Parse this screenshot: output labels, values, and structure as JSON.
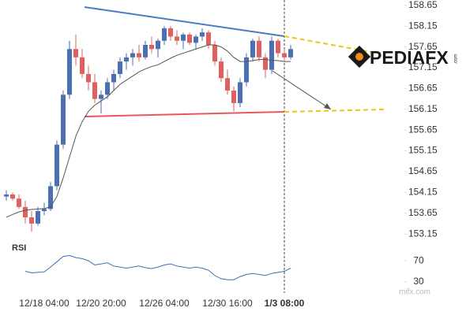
{
  "chart_data": {
    "type": "candlestick",
    "categories": [
      null,
      null,
      null,
      null,
      null,
      null,
      "12/18 04:00",
      null,
      null,
      null,
      null,
      null,
      null,
      null,
      null,
      "12/20 20:00",
      null,
      null,
      null,
      null,
      null,
      null,
      null,
      null,
      null,
      "12/26 04:00",
      null,
      null,
      null,
      null,
      null,
      null,
      null,
      null,
      null,
      "12/30 16:00",
      null,
      null,
      null,
      null,
      null,
      null,
      null,
      null,
      "1/3 08:00",
      null
    ],
    "open": [
      154.05,
      154.1,
      154.0,
      153.8,
      153.55,
      153.4,
      153.7,
      153.75,
      154.3,
      155.3,
      156.5,
      157.6,
      157.4,
      157.0,
      156.8,
      156.4,
      156.5,
      156.8,
      157.0,
      157.3,
      157.4,
      157.5,
      157.4,
      157.7,
      157.6,
      157.8,
      158.1,
      157.9,
      157.8,
      157.95,
      157.75,
      157.9,
      158.0,
      157.7,
      157.3,
      156.9,
      156.6,
      156.3,
      156.8,
      157.4,
      157.8,
      157.4,
      157.1,
      157.8,
      157.5,
      157.4
    ],
    "high": [
      154.2,
      154.15,
      154.1,
      153.95,
      153.7,
      153.8,
      153.9,
      154.4,
      155.4,
      156.6,
      157.8,
      157.95,
      157.6,
      157.2,
      157.0,
      156.6,
      156.9,
      157.1,
      157.4,
      157.5,
      157.6,
      157.7,
      157.8,
      157.9,
      157.85,
      158.15,
      158.15,
      158.05,
      158.0,
      158.0,
      157.95,
      158.1,
      158.05,
      157.8,
      157.4,
      157.1,
      156.7,
      156.9,
      157.5,
      157.85,
      157.9,
      157.5,
      157.9,
      157.85,
      157.6,
      157.7
    ],
    "low": [
      153.95,
      153.95,
      153.75,
      153.4,
      153.2,
      153.35,
      153.6,
      153.7,
      154.2,
      155.2,
      156.4,
      157.2,
      156.9,
      156.6,
      156.3,
      156.05,
      156.4,
      156.6,
      156.9,
      157.1,
      157.2,
      157.3,
      157.35,
      157.5,
      157.4,
      157.7,
      157.8,
      157.7,
      157.6,
      157.7,
      157.6,
      157.8,
      157.6,
      157.2,
      156.8,
      156.5,
      156.1,
      156.2,
      156.7,
      157.3,
      157.3,
      156.9,
      157.0,
      157.4,
      157.3,
      157.35
    ],
    "close": [
      154.1,
      154.0,
      153.8,
      153.55,
      153.4,
      153.7,
      153.75,
      154.3,
      155.3,
      156.5,
      157.6,
      157.4,
      157.0,
      156.8,
      156.4,
      156.5,
      156.8,
      157.0,
      157.3,
      157.4,
      157.5,
      157.4,
      157.7,
      157.6,
      157.8,
      158.1,
      157.9,
      157.8,
      157.95,
      157.75,
      157.9,
      158.0,
      157.7,
      157.3,
      156.9,
      156.6,
      156.3,
      156.8,
      157.4,
      157.8,
      157.4,
      157.1,
      157.8,
      157.5,
      157.4,
      157.6
    ],
    "up_color": "#4a6fb5",
    "down_color": "#e0605f",
    "ma": [
      153.55,
      153.62,
      153.68,
      153.72,
      153.74,
      153.75,
      153.76,
      153.8,
      154.05,
      154.5,
      155.0,
      155.5,
      155.85,
      156.1,
      156.25,
      156.35,
      156.45,
      156.6,
      156.75,
      156.85,
      156.95,
      157.05,
      157.12,
      157.18,
      157.22,
      157.3,
      157.38,
      157.45,
      157.5,
      157.55,
      157.6,
      157.65,
      157.7,
      157.7,
      157.65,
      157.55,
      157.4,
      157.3,
      157.3,
      157.32,
      157.35,
      157.35,
      157.33,
      157.32,
      157.3,
      157.3
    ],
    "ma_color": "#555555",
    "ylim": [
      153.0,
      158.78
    ],
    "yticks": [
      158.65,
      158.15,
      157.65,
      157.15,
      156.65,
      156.15,
      155.65,
      155.15,
      154.65,
      154.15,
      153.65,
      153.15
    ],
    "rsi": {
      "label": "RSI",
      "color": "#3d6fb6",
      "ylim": [
        15,
        94
      ],
      "yticks": [
        70,
        30
      ],
      "values": [
        null,
        null,
        null,
        50,
        47,
        48,
        49,
        58,
        68,
        78,
        80,
        76,
        74,
        70,
        62,
        64,
        66,
        60,
        58,
        56,
        58,
        60,
        57,
        55,
        58,
        62,
        64,
        60,
        58,
        56,
        58,
        56,
        52,
        42,
        36,
        34,
        34,
        40,
        44,
        46,
        44,
        42,
        46,
        48,
        50,
        56
      ]
    },
    "logo": "PEDIAFX",
    "logo_suffix": ".com",
    "watermark": "mifx.com"
  }
}
